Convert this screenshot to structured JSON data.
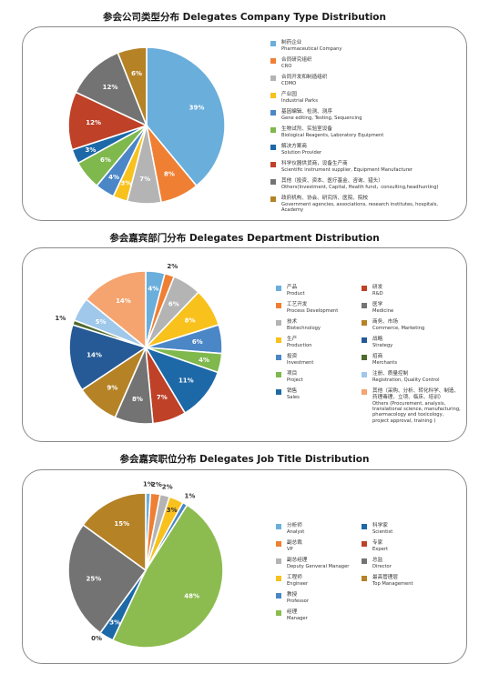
{
  "titles": {
    "company": "参会公司类型分布 Delegates Company Type Distribution",
    "department": "参会嘉宾部门分布  Delegates Department Distribution",
    "job": "参会嘉宾职位分布 Delegates Job Title Distribution"
  },
  "chart_data": [
    {
      "type": "pie",
      "title": "参会公司类型分布 Delegates Company Type Distribution",
      "slices": [
        {
          "cn": "制药企业",
          "en": "Pharmaceutical Company",
          "label": "39%",
          "value": 39,
          "color": "#6aaedc"
        },
        {
          "cn": "合同研究组织",
          "en": "CRO",
          "label": "8%",
          "value": 8,
          "color": "#ef7f33"
        },
        {
          "cn": "合同开发和制造组织",
          "en": "CDMO",
          "label": "7%",
          "value": 7,
          "color": "#b4b4b4"
        },
        {
          "cn": "产业园",
          "en": "Industrial Parks",
          "label": "3%",
          "value": 3,
          "color": "#f8c11c"
        },
        {
          "cn": "基因编辑、检测、测序",
          "en": "Gene editing, Testing, Sequencing",
          "label": "4%",
          "value": 4,
          "color": "#4b86c7"
        },
        {
          "cn": "生物试剂、实验室设备",
          "en": "Biological Reagents, Laboratory Equipment",
          "label": "6%",
          "value": 6,
          "color": "#7fb84d"
        },
        {
          "cn": "解决方案商",
          "en": "Solution Provider",
          "label": "3%",
          "value": 3,
          "color": "#1d69a8"
        },
        {
          "cn": "科学仪器供货商，设备生产商",
          "en": "Scientific instrument supplier, Equipment Manufacturer",
          "label": "12%",
          "value": 12,
          "color": "#be4128"
        },
        {
          "cn": "其他（投资、资本、医疗基金、咨询、猎头）",
          "en": "Others(Investment, Capital, Health fund，consulting,headhunting)",
          "label": "12%",
          "value": 12,
          "color": "#737373"
        },
        {
          "cn": "政府机构、协会、研究所、医院、院校",
          "en": "Government agencies, associations, research institutes, hospitals, Academy",
          "label": "6%",
          "value": 6,
          "color": "#b58225"
        }
      ]
    },
    {
      "type": "pie",
      "title": "参会嘉宾部门分布  Delegates Department Distribution",
      "slices": [
        {
          "cn": "产品",
          "en": "Product",
          "label": "4%",
          "value": 4,
          "color": "#6aaedc"
        },
        {
          "cn": "工艺开发",
          "en": "Process Development",
          "label": "2%",
          "value": 2,
          "color": "#ef7f33"
        },
        {
          "cn": "技术",
          "en": "Biotechnology",
          "label": "6%",
          "value": 6,
          "color": "#b4b4b4"
        },
        {
          "cn": "生产",
          "en": "Production",
          "label": "8%",
          "value": 8,
          "color": "#f8c11c"
        },
        {
          "cn": "投资",
          "en": "Investment",
          "label": "6%",
          "value": 6,
          "color": "#4b86c7"
        },
        {
          "cn": "项目",
          "en": "Project",
          "label": "4%",
          "value": 4,
          "color": "#7fb84d"
        },
        {
          "cn": "销售",
          "en": "Sales",
          "label": "11%",
          "value": 11,
          "color": "#1d69a8"
        },
        {
          "cn": "研发",
          "en": "R&D",
          "label": "7%",
          "value": 7,
          "color": "#be4128"
        },
        {
          "cn": "医学",
          "en": "Medicine",
          "label": "8%",
          "value": 8,
          "color": "#737373"
        },
        {
          "cn": "商务、市场",
          "en": "Commerce, Marketing",
          "label": "9%",
          "value": 9,
          "color": "#b58225"
        },
        {
          "cn": "战略",
          "en": "Strategy",
          "label": "14%",
          "value": 14,
          "color": "#255a96"
        },
        {
          "cn": "招商",
          "en": "Merchants",
          "label": "1%",
          "value": 1,
          "color": "#4f6b2e"
        },
        {
          "cn": "注册、质量控制",
          "en": "Registration, Quality Control",
          "label": "5%",
          "value": 5,
          "color": "#9fc8ea"
        },
        {
          "cn": "其他（采购、分析、转化科学、制造、药理毒理、立项、临床、培训）",
          "en": "Others (Procurement, analysis,\ntranslational science, manufacturing,\npharmacology and toxicology,\nproject approval, training )",
          "label": "14%",
          "value": 14,
          "color": "#f5a470"
        }
      ]
    },
    {
      "type": "pie",
      "title": "参会嘉宾职位分布 Delegates Job Title Distribution",
      "slices": [
        {
          "cn": "分析师",
          "en": "Analyst",
          "label": "1%",
          "value": 1,
          "color": "#6aaedc"
        },
        {
          "cn": "副总裁",
          "en": "VP",
          "label": "2%",
          "value": 2,
          "color": "#ef7f33"
        },
        {
          "cn": "副总经理",
          "en": "Deputy Genveral Manager",
          "label": "2%",
          "value": 2,
          "color": "#b4b4b4"
        },
        {
          "cn": "工程师",
          "en": "Engineer",
          "label": "3%",
          "value": 3,
          "color": "#f8c11c"
        },
        {
          "cn": "教授",
          "en": "Professor",
          "label": "1%",
          "value": 1,
          "color": "#4b86c7"
        },
        {
          "cn": "经理",
          "en": "Manager",
          "label": "48%",
          "value": 48,
          "color": "#8cbc4f"
        },
        {
          "cn": "科学家",
          "en": "Scientist",
          "label": "3%",
          "value": 3,
          "color": "#1d69a8"
        },
        {
          "cn": "专家",
          "en": "Expert",
          "label": "0%",
          "value": 0,
          "color": "#be4128"
        },
        {
          "cn": "总监",
          "en": "Director",
          "label": "25%",
          "value": 25,
          "color": "#737373"
        },
        {
          "cn": "最高管理层",
          "en": "Top Management",
          "label": "15%",
          "value": 15,
          "color": "#b58225"
        }
      ]
    }
  ]
}
